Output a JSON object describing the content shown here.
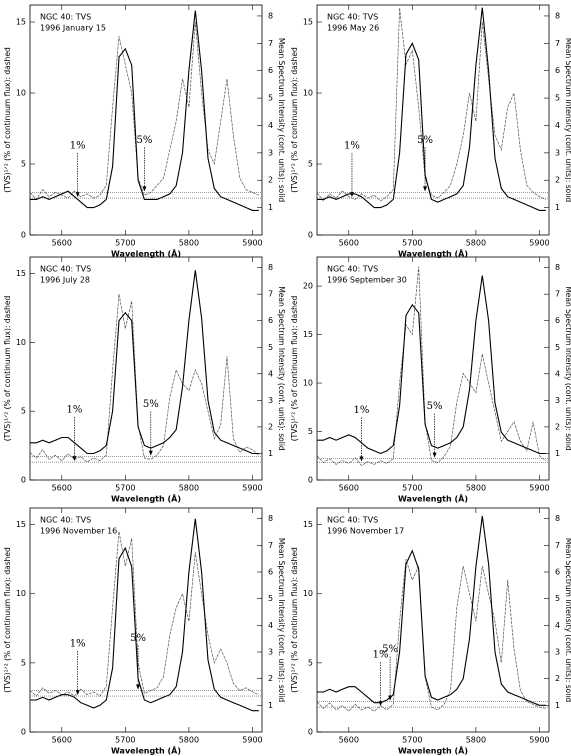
{
  "chart_data": [
    {
      "type": "line",
      "title": "NGC 40: TVS",
      "subtitle": "1996 January 15",
      "xlabel": "Wavelength (Å)",
      "ylabel": "(TVS)¹ᐟ² (% of continuum flux): dashed",
      "y2label": "Mean Spectrum Intensity (cont. units): solid",
      "x": [
        5550,
        5560,
        5570,
        5580,
        5590,
        5600,
        5610,
        5620,
        5630,
        5640,
        5650,
        5660,
        5670,
        5680,
        5690,
        5700,
        5710,
        5720,
        5730,
        5740,
        5750,
        5760,
        5770,
        5780,
        5790,
        5800,
        5810,
        5820,
        5830,
        5840,
        5850,
        5860,
        5870,
        5880,
        5890,
        5900,
        5910
      ],
      "xlim": [
        5550,
        5915
      ],
      "xticks": [
        5600,
        5700,
        5800,
        5900
      ],
      "ylim": [
        0,
        16.2
      ],
      "yticks": [
        0,
        5,
        10,
        15
      ],
      "y2lim": [
        0,
        8.4
      ],
      "y2ticks": [
        1,
        2,
        3,
        4,
        5,
        6,
        7,
        8
      ],
      "series": [
        {
          "color": "#555555",
          "style": "dashed",
          "values": [
            3,
            2.5,
            3.2,
            2.7,
            3,
            2.8,
            2.6,
            3.1,
            2.7,
            2.9,
            2.6,
            2.8,
            3.5,
            9,
            14,
            12,
            10,
            4,
            2.8,
            3,
            3.5,
            4,
            6,
            8,
            11,
            9,
            15,
            10,
            6,
            5,
            8,
            11,
            7,
            4,
            3.2,
            3,
            2.8
          ]
        },
        {
          "color": "#000000",
          "style": "solid",
          "axis": "y2",
          "values": [
            1.3,
            1.3,
            1.4,
            1.3,
            1.4,
            1.5,
            1.6,
            1.4,
            1.2,
            1.0,
            1.0,
            1.1,
            1.3,
            2.5,
            6.5,
            6.8,
            6.2,
            2.0,
            1.3,
            1.3,
            1.3,
            1.4,
            1.5,
            1.8,
            3.0,
            6.0,
            8.2,
            6.0,
            2.8,
            1.7,
            1.4,
            1.3,
            1.2,
            1.1,
            1.0,
            0.9,
            0.9
          ]
        }
      ],
      "levels": [
        {
          "label": "1%",
          "value": 2.6,
          "x": 5625
        },
        {
          "label": "5%",
          "value": 3.0,
          "x": 5730
        }
      ]
    },
    {
      "type": "line",
      "title": "NGC 40: TVS",
      "subtitle": "1996 May 26",
      "xlabel": "Wavelength (Å)",
      "ylabel": "(TVS)¹ᐟ² (% of continuum flux): dashed",
      "y2label": "Mean Spectrum Intensity (cont. units): solid",
      "x": [
        5550,
        5560,
        5570,
        5580,
        5590,
        5600,
        5610,
        5620,
        5630,
        5640,
        5650,
        5660,
        5670,
        5680,
        5690,
        5700,
        5710,
        5720,
        5730,
        5740,
        5750,
        5760,
        5770,
        5780,
        5790,
        5800,
        5810,
        5820,
        5830,
        5840,
        5850,
        5860,
        5870,
        5880,
        5890,
        5900,
        5910
      ],
      "xlim": [
        5550,
        5915
      ],
      "xticks": [
        5600,
        5700,
        5800,
        5900
      ],
      "ylim": [
        0,
        16.2
      ],
      "yticks": [
        0,
        5,
        10,
        15
      ],
      "y2lim": [
        0,
        8.4
      ],
      "y2ticks": [
        1,
        2,
        3,
        4,
        5,
        6,
        7,
        8
      ],
      "series": [
        {
          "color": "#555555",
          "style": "dashed",
          "values": [
            3.0,
            2.4,
            2.9,
            2.6,
            3.1,
            2.7,
            2.5,
            2.9,
            2.6,
            2.8,
            2.4,
            2.7,
            3.2,
            16,
            12,
            13,
            9,
            4,
            2.8,
            2.6,
            3,
            3.5,
            5,
            7,
            10,
            8,
            15,
            11,
            7,
            6,
            9,
            10,
            6,
            3.5,
            3,
            2.7,
            2.5
          ]
        },
        {
          "color": "#000000",
          "style": "solid",
          "axis": "y2",
          "values": [
            1.3,
            1.3,
            1.4,
            1.3,
            1.4,
            1.5,
            1.5,
            1.4,
            1.2,
            1.0,
            1.0,
            1.1,
            1.3,
            3.0,
            6.6,
            7.0,
            6.4,
            2.2,
            1.3,
            1.2,
            1.3,
            1.4,
            1.5,
            1.8,
            3.2,
            6.2,
            8.3,
            6.0,
            2.8,
            1.7,
            1.4,
            1.3,
            1.2,
            1.1,
            1.0,
            0.9,
            0.9
          ]
        }
      ],
      "levels": [
        {
          "label": "1%",
          "value": 2.6,
          "x": 5605
        },
        {
          "label": "5%",
          "value": 3.0,
          "x": 5720
        }
      ]
    },
    {
      "type": "line",
      "title": "NGC 40: TVS",
      "subtitle": "1996 July 28",
      "xlabel": "Wavelength (Å)",
      "ylabel": "(TVS)¹ᐟ² (% of continuum flux): dashed",
      "y2label": "Mean Spectrum Intensity (cont. units): solid",
      "x": [
        5550,
        5560,
        5570,
        5580,
        5590,
        5600,
        5610,
        5620,
        5630,
        5640,
        5650,
        5660,
        5670,
        5680,
        5690,
        5700,
        5710,
        5720,
        5730,
        5740,
        5750,
        5760,
        5770,
        5780,
        5790,
        5800,
        5810,
        5820,
        5830,
        5840,
        5850,
        5860,
        5870,
        5880,
        5890,
        5900,
        5910
      ],
      "xlim": [
        5550,
        5915
      ],
      "xticks": [
        5600,
        5700,
        5800,
        5900
      ],
      "ylim": [
        0,
        16.2
      ],
      "yticks": [
        0,
        5,
        10,
        15
      ],
      "y2lim": [
        0,
        8.4
      ],
      "y2ticks": [
        1,
        2,
        3,
        4,
        5,
        6,
        7,
        8
      ],
      "series": [
        {
          "color": "#555555",
          "style": "dashed",
          "values": [
            2.0,
            1.6,
            2.2,
            1.5,
            1.8,
            1.4,
            1.9,
            1.5,
            1.7,
            1.3,
            1.6,
            1.4,
            1.8,
            8,
            13.5,
            11,
            13,
            4,
            1.6,
            1.5,
            1.8,
            2.5,
            6,
            8,
            7,
            6.5,
            8,
            7,
            5,
            3,
            4,
            9,
            3,
            2,
            2.4,
            2.2,
            1.8
          ]
        },
        {
          "color": "#000000",
          "style": "solid",
          "axis": "y2",
          "values": [
            1.4,
            1.4,
            1.5,
            1.4,
            1.5,
            1.6,
            1.6,
            1.4,
            1.2,
            1.0,
            1.0,
            1.1,
            1.3,
            2.6,
            6.0,
            6.3,
            6.0,
            2.0,
            1.3,
            1.2,
            1.3,
            1.4,
            1.6,
            1.9,
            3.5,
            6.0,
            7.9,
            6.1,
            3.0,
            1.8,
            1.5,
            1.4,
            1.3,
            1.2,
            1.1,
            1.0,
            1.0
          ]
        }
      ],
      "levels": [
        {
          "label": "1%",
          "value": 1.3,
          "x": 5620
        },
        {
          "label": "5%",
          "value": 1.7,
          "x": 5740
        }
      ]
    },
    {
      "type": "line",
      "title": "NGC 40: TVS",
      "subtitle": "1996 September 30",
      "xlabel": "Wavelength (Å)",
      "ylabel": "(TVS)¹ᐟ² (% of continuum flux): dashed",
      "y2label": "Mean Spectrum Intensity (cont. units): solid",
      "x": [
        5550,
        5560,
        5570,
        5580,
        5590,
        5600,
        5610,
        5620,
        5630,
        5640,
        5650,
        5660,
        5670,
        5680,
        5690,
        5700,
        5710,
        5720,
        5730,
        5740,
        5750,
        5760,
        5770,
        5780,
        5790,
        5800,
        5810,
        5820,
        5830,
        5840,
        5850,
        5860,
        5870,
        5880,
        5890,
        5900,
        5910
      ],
      "xlim": [
        5550,
        5915
      ],
      "xticks": [
        5600,
        5700,
        5800,
        5900
      ],
      "ylim": [
        0,
        23
      ],
      "yticks": [
        0,
        5,
        10,
        15,
        20
      ],
      "y2lim": [
        0,
        8.4
      ],
      "y2ticks": [
        1,
        2,
        3,
        4,
        5,
        6,
        7,
        8
      ],
      "series": [
        {
          "color": "#555555",
          "style": "dashed",
          "values": [
            2.5,
            1.8,
            2.2,
            1.6,
            2.0,
            1.7,
            2.3,
            1.5,
            1.9,
            1.6,
            2.0,
            1.7,
            2.2,
            10,
            16,
            15,
            22,
            6,
            2.0,
            1.8,
            2.4,
            3.5,
            8,
            11,
            10,
            9,
            13,
            10,
            7,
            4,
            5,
            6,
            4,
            3,
            6,
            2.5,
            2.0
          ]
        },
        {
          "color": "#000000",
          "style": "solid",
          "axis": "y2",
          "values": [
            1.5,
            1.5,
            1.6,
            1.5,
            1.6,
            1.7,
            1.6,
            1.4,
            1.2,
            1.1,
            1.0,
            1.1,
            1.3,
            2.8,
            6.2,
            6.6,
            6.3,
            2.1,
            1.3,
            1.2,
            1.3,
            1.4,
            1.6,
            2.0,
            3.4,
            6.0,
            7.7,
            6.0,
            2.9,
            1.8,
            1.5,
            1.4,
            1.3,
            1.2,
            1.1,
            1.0,
            1.0
          ]
        }
      ],
      "levels": [
        {
          "label": "1%",
          "value": 1.8,
          "x": 5620
        },
        {
          "label": "5%",
          "value": 2.2,
          "x": 5735
        }
      ]
    },
    {
      "type": "line",
      "title": "NGC 40: TVS",
      "subtitle": "1996 November 16",
      "xlabel": "Wavelength (Å)",
      "ylabel": "(TVS)¹ᐟ² (% of continuum flux): dashed",
      "y2label": "Mean Spectrum Intensity (cont. units): solid",
      "x": [
        5550,
        5560,
        5570,
        5580,
        5590,
        5600,
        5610,
        5620,
        5630,
        5640,
        5650,
        5660,
        5670,
        5680,
        5690,
        5700,
        5710,
        5720,
        5730,
        5740,
        5750,
        5760,
        5770,
        5780,
        5790,
        5800,
        5810,
        5820,
        5830,
        5840,
        5850,
        5860,
        5870,
        5880,
        5890,
        5900,
        5910
      ],
      "xlim": [
        5550,
        5915
      ],
      "xticks": [
        5600,
        5700,
        5800,
        5900
      ],
      "ylim": [
        0,
        16.2
      ],
      "yticks": [
        0,
        5,
        10,
        15
      ],
      "y2lim": [
        0,
        8.4
      ],
      "y2ticks": [
        1,
        2,
        3,
        4,
        5,
        6,
        7,
        8
      ],
      "series": [
        {
          "color": "#555555",
          "style": "dashed",
          "values": [
            3.0,
            2.6,
            3.2,
            2.8,
            3.0,
            2.7,
            2.9,
            2.6,
            3.1,
            2.7,
            2.9,
            2.6,
            3.3,
            9,
            14.5,
            12,
            14,
            5,
            2.8,
            3.0,
            3.2,
            4,
            7,
            9,
            10,
            8,
            13,
            10,
            7,
            5,
            6,
            5,
            3.5,
            3,
            3.2,
            2.9,
            2.7
          ]
        },
        {
          "color": "#000000",
          "style": "solid",
          "axis": "y2",
          "values": [
            1.2,
            1.2,
            1.3,
            1.2,
            1.3,
            1.4,
            1.4,
            1.3,
            1.1,
            1.0,
            0.9,
            1.0,
            1.2,
            2.4,
            6.5,
            6.9,
            6.2,
            2.0,
            1.2,
            1.1,
            1.2,
            1.3,
            1.4,
            1.7,
            3.0,
            6.0,
            8.0,
            6.0,
            2.7,
            1.6,
            1.3,
            1.2,
            1.1,
            1.0,
            0.9,
            0.8,
            0.8
          ]
        }
      ],
      "levels": [
        {
          "label": "1%",
          "value": 2.6,
          "x": 5625
        },
        {
          "label": "5%",
          "value": 3.0,
          "x": 5720
        }
      ]
    },
    {
      "type": "line",
      "title": "NGC 40: TVS",
      "subtitle": "1996 November 17",
      "xlabel": "Wavelength (Å)",
      "ylabel": "(TVS)¹ᐟ² (% of continuum flux): dashed",
      "y2label": "Mean Spectrum Intensity (cont. units): solid",
      "x": [
        5550,
        5560,
        5570,
        5580,
        5590,
        5600,
        5610,
        5620,
        5630,
        5640,
        5650,
        5660,
        5670,
        5680,
        5690,
        5700,
        5710,
        5720,
        5730,
        5740,
        5750,
        5760,
        5770,
        5780,
        5790,
        5800,
        5810,
        5820,
        5830,
        5840,
        5850,
        5860,
        5870,
        5880,
        5890,
        5900,
        5910
      ],
      "xlim": [
        5550,
        5915
      ],
      "xticks": [
        5600,
        5700,
        5800,
        5900
      ],
      "ylim": [
        0,
        16.2
      ],
      "yticks": [
        0,
        5,
        10,
        15
      ],
      "y2lim": [
        0,
        8.4
      ],
      "y2ticks": [
        1,
        2,
        3,
        4,
        5,
        6,
        7,
        8
      ],
      "series": [
        {
          "color": "#555555",
          "style": "dashed",
          "values": [
            2.2,
            1.7,
            2.1,
            1.6,
            1.9,
            1.5,
            2.0,
            1.6,
            1.8,
            1.5,
            1.9,
            1.6,
            2.0,
            8,
            12.5,
            11,
            12,
            4,
            1.8,
            1.6,
            2.0,
            3,
            9,
            12,
            10,
            8,
            12,
            10,
            8,
            5,
            11,
            6,
            3,
            2.2,
            2.0,
            1.8,
            1.7
          ]
        },
        {
          "color": "#000000",
          "style": "solid",
          "axis": "y2",
          "values": [
            1.5,
            1.5,
            1.6,
            1.5,
            1.6,
            1.7,
            1.7,
            1.5,
            1.3,
            1.1,
            1.1,
            1.2,
            1.4,
            3.0,
            6.3,
            6.8,
            6.1,
            2.1,
            1.3,
            1.2,
            1.3,
            1.4,
            1.6,
            2.0,
            3.5,
            6.2,
            8.1,
            6.3,
            3.0,
            1.8,
            1.5,
            1.4,
            1.3,
            1.2,
            1.1,
            1.0,
            1.0
          ]
        }
      ],
      "levels": [
        {
          "label": "1%",
          "value": 1.8,
          "x": 5650
        },
        {
          "label": "5%",
          "value": 2.2,
          "x": 5665
        }
      ]
    }
  ]
}
